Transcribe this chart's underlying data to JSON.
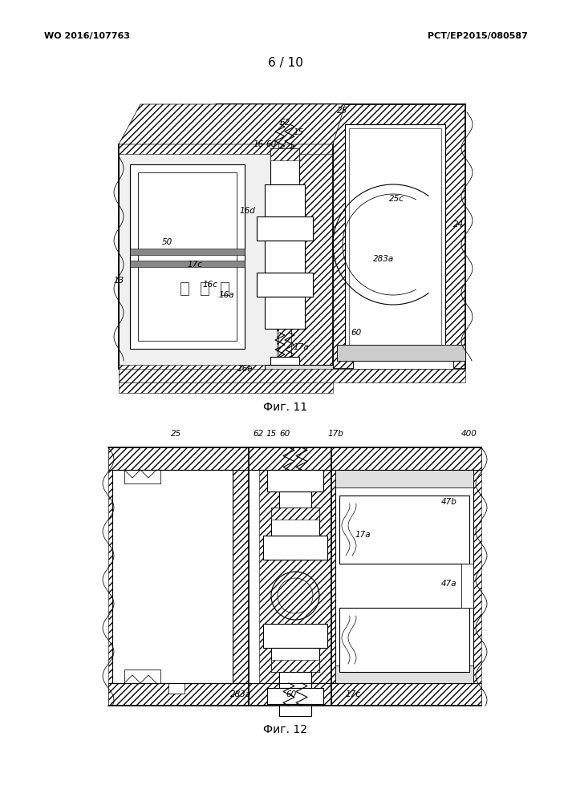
{
  "page_width": 7.13,
  "page_height": 9.99,
  "bg_color": "#ffffff",
  "header_left": "WO 2016/107763",
  "header_right": "PCT/EP2015/080587",
  "page_label": "6 / 10",
  "fig1_caption": "Фиг. 11",
  "fig2_caption": "Фиг. 12",
  "header_fontsize": 8,
  "caption_fontsize": 10,
  "page_label_fontsize": 11,
  "fig11_labels": [
    [
      "25",
      427,
      138
    ],
    [
      "62",
      355,
      153
    ],
    [
      "15",
      372,
      165
    ],
    [
      "16",
      322,
      180
    ],
    [
      "60",
      338,
      180
    ],
    [
      "25c",
      494,
      248
    ],
    [
      "24",
      572,
      280
    ],
    [
      "283a",
      478,
      323
    ],
    [
      "50",
      208,
      302
    ],
    [
      "16d",
      308,
      263
    ],
    [
      "17c",
      243,
      330
    ],
    [
      "16c",
      262,
      355
    ],
    [
      "16a",
      282,
      368
    ],
    [
      "13",
      148,
      350
    ],
    [
      "60",
      444,
      415
    ],
    [
      "17a",
      375,
      433
    ],
    [
      "16e",
      305,
      460
    ]
  ],
  "fig12_labels": [
    [
      "25",
      220,
      541
    ],
    [
      "62",
      322,
      541
    ],
    [
      "15",
      338,
      541
    ],
    [
      "60",
      355,
      541
    ],
    [
      "17b",
      418,
      541
    ],
    [
      "400",
      585,
      541
    ],
    [
      "47b",
      560,
      626
    ],
    [
      "17a",
      452,
      667
    ],
    [
      "47a",
      560,
      728
    ],
    [
      "283a",
      300,
      866
    ],
    [
      "60",
      363,
      866
    ],
    [
      "17c",
      440,
      866
    ]
  ]
}
